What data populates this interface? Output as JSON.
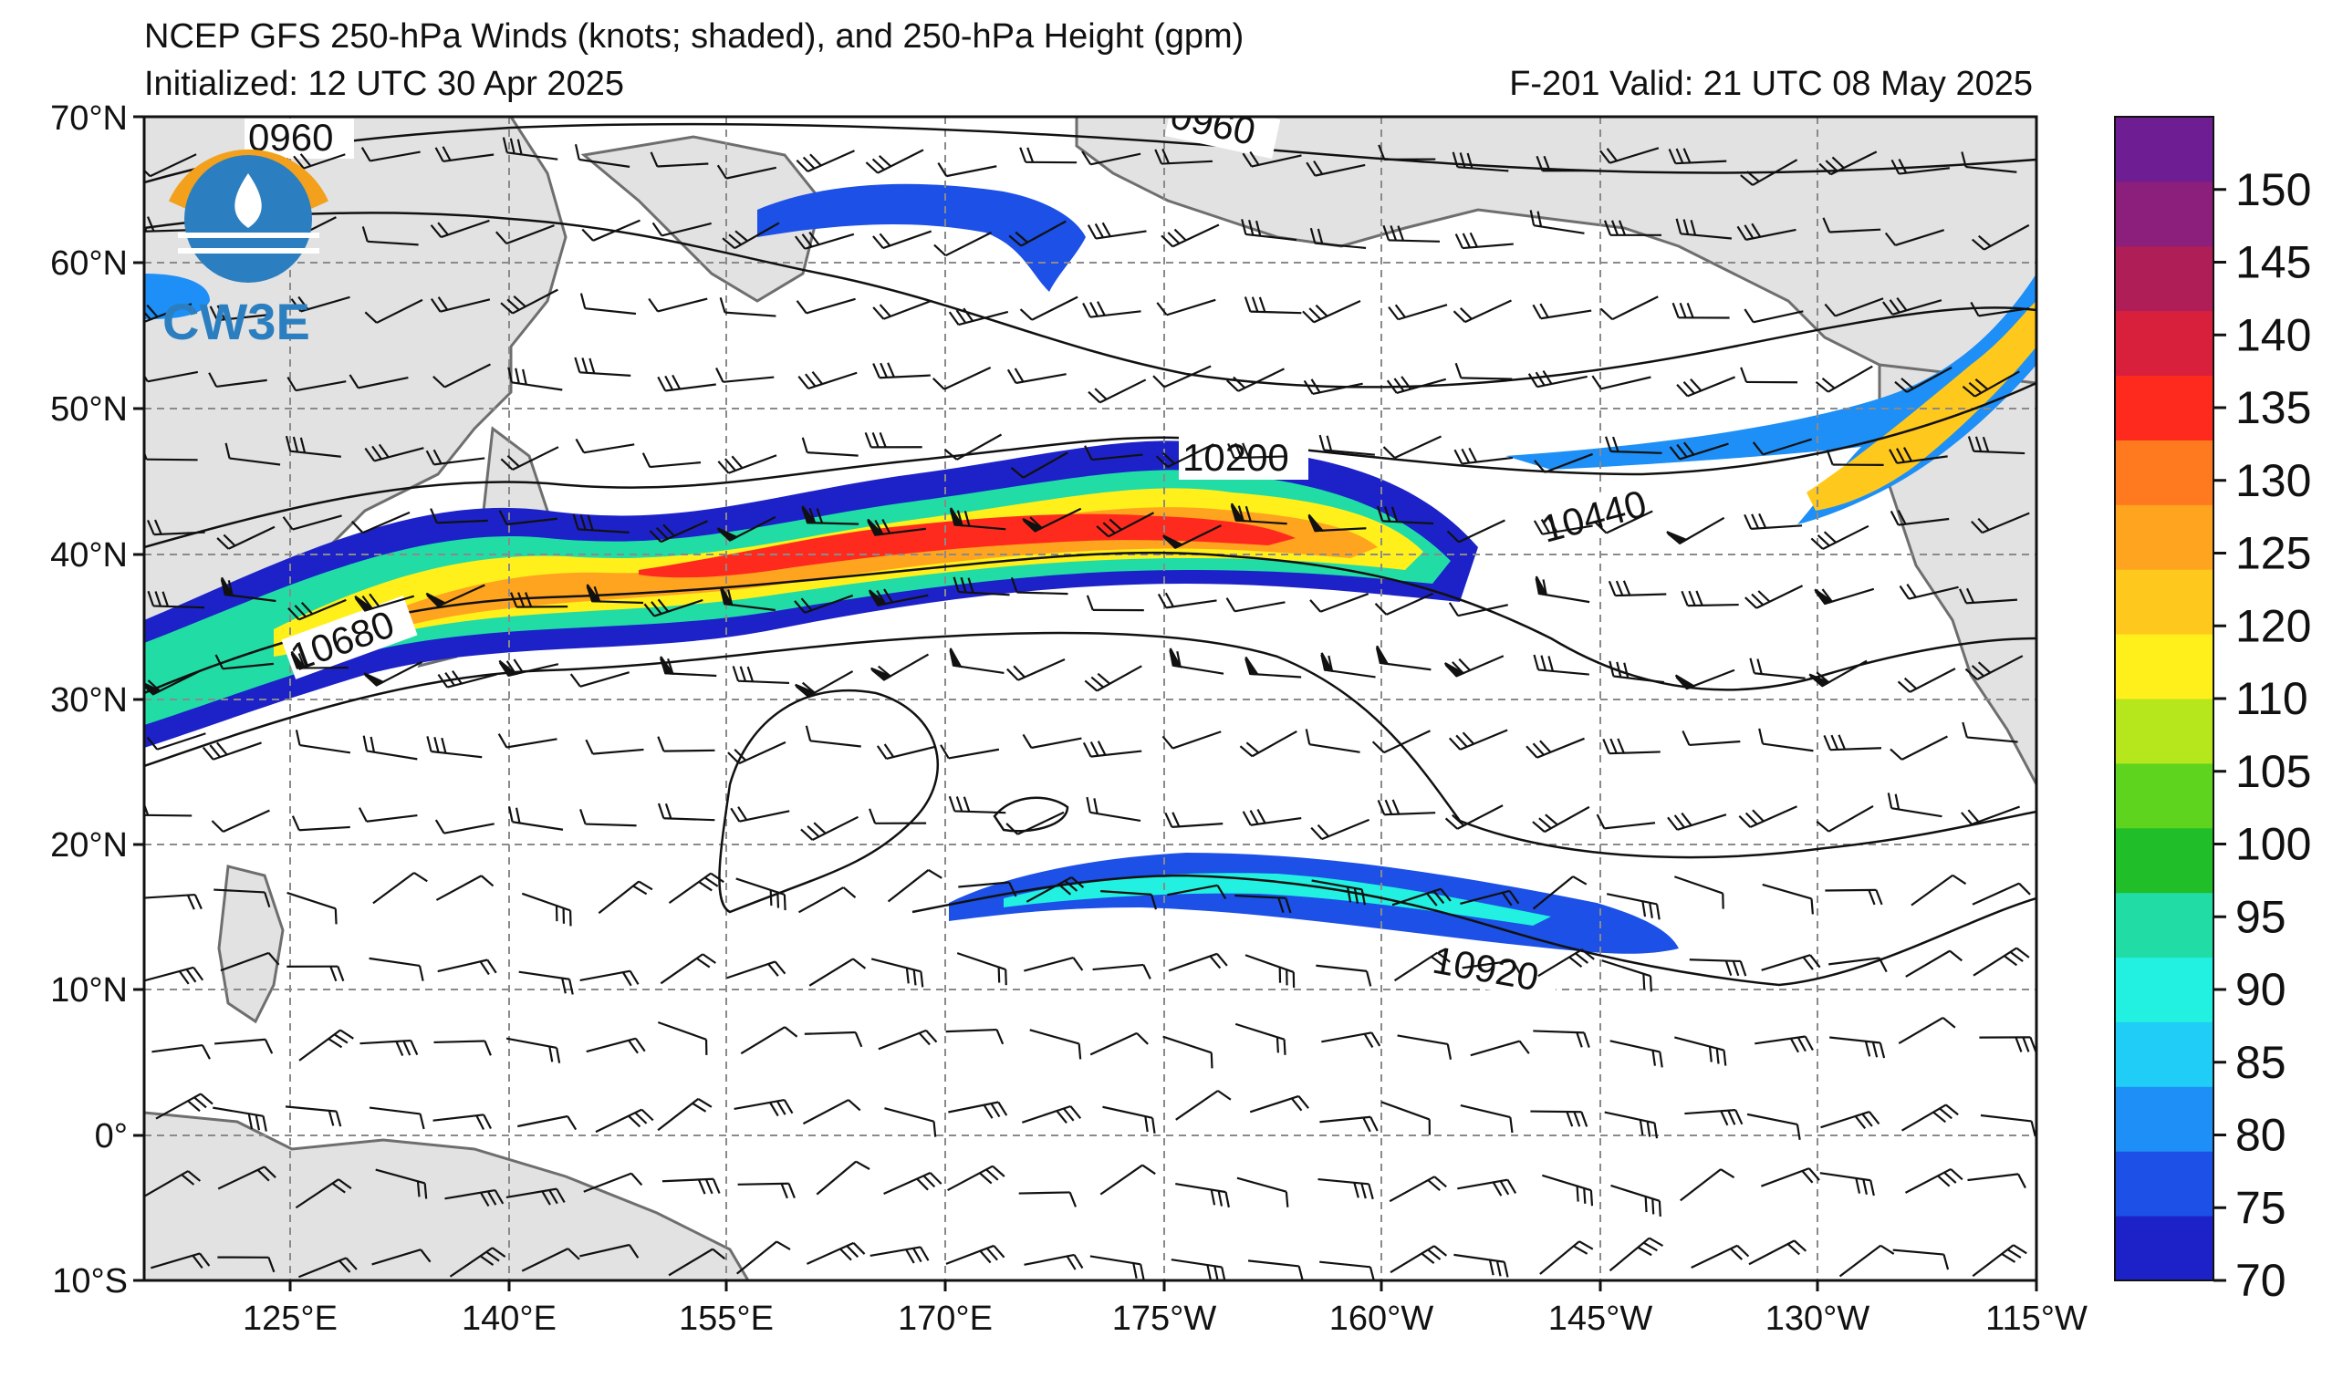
{
  "title": "NCEP GFS 250-hPa Winds (knots; shaded), and 250-hPa Height (gpm)",
  "initialized": "Initialized: 12 UTC 30 Apr 2025",
  "valid": "F-201  Valid: 21 UTC 08 May 2025",
  "logo_text": "CW3E",
  "lat_labels": [
    "70°N",
    "60°N",
    "50°N",
    "40°N",
    "30°N",
    "20°N",
    "10°N",
    "0°",
    "10°S"
  ],
  "lon_labels": [
    "125°E",
    "140°E",
    "155°E",
    "170°E",
    "175°W",
    "160°W",
    "145°W",
    "130°W",
    "115°W"
  ],
  "colorbar": {
    "levels": [
      70,
      75,
      80,
      85,
      90,
      95,
      100,
      105,
      110,
      120,
      125,
      130,
      135,
      140,
      145,
      150
    ],
    "labels": [
      "70",
      "75",
      "80",
      "85",
      "90",
      "95",
      "100",
      "105",
      "110",
      "120",
      "125",
      "130",
      "135",
      "140",
      "145",
      "150"
    ],
    "colors": [
      "#1c22c8",
      "#1c50e6",
      "#1e8ff6",
      "#20cdf6",
      "#22f0e0",
      "#22dca6",
      "#20be28",
      "#5fd41e",
      "#b6e61c",
      "#fff01c",
      "#ffc81c",
      "#ffa41e",
      "#ff7a1e",
      "#ff2a1e",
      "#d8203c",
      "#b01e58",
      "#8c1e7c",
      "#6e1e92"
    ]
  },
  "contour_labels": [
    "0960",
    "0960",
    "10200",
    "10440",
    "10680",
    "10920"
  ],
  "colors": {
    "land": "#e2e2e2",
    "coast": "#6e6e6e",
    "grid": "#8a8a8a",
    "contour": "#111111",
    "logo_orange": "#f3a11d",
    "logo_blue": "#2b7fc0"
  }
}
